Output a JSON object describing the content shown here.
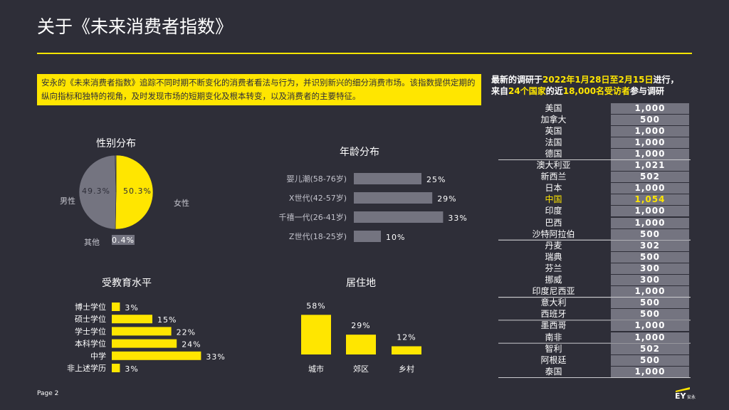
{
  "title": "关于《未来消费者指数》",
  "intro": "安永的《未来消费者指数》追踪不同时期不断变化的消费者看法与行为，并识别新兴的细分消费市场。该指数提供定期的纵向指标和独特的视角，及时发现市场的短期变化及根本转变，以及消费者的主要特征。",
  "survey": {
    "heading_parts": [
      "最新的调研于",
      "2022年1月28日至2月15日",
      "进行，",
      "来自",
      "24个国家",
      "的近",
      "18,000名受访者",
      "参与调研"
    ]
  },
  "countries": [
    {
      "name": "美国",
      "value": "1,000"
    },
    {
      "name": "加拿大",
      "value": "500"
    },
    {
      "name": "英国",
      "value": "1,000"
    },
    {
      "name": "法国",
      "value": "1,000"
    },
    {
      "name": "德国",
      "value": "1,000"
    },
    {
      "name": "澳大利亚",
      "value": "1,021"
    },
    {
      "name": "新西兰",
      "value": "502"
    },
    {
      "name": "日本",
      "value": "1,000"
    },
    {
      "name": "中国",
      "value": "1,054",
      "highlight": true
    },
    {
      "name": "印度",
      "value": "1,000"
    },
    {
      "name": "巴西",
      "value": "1,000"
    },
    {
      "name": "沙特阿拉伯",
      "value": "500"
    },
    {
      "name": "丹麦",
      "value": "302"
    },
    {
      "name": "瑞典",
      "value": "500"
    },
    {
      "name": "芬兰",
      "value": "300"
    },
    {
      "name": "挪威",
      "value": "300"
    },
    {
      "name": "印度尼西亚",
      "value": "1,000"
    },
    {
      "name": "意大利",
      "value": "500"
    },
    {
      "name": "西班牙",
      "value": "500"
    },
    {
      "name": "墨西哥",
      "value": "1,000"
    },
    {
      "name": "南非",
      "value": "1,000"
    },
    {
      "name": "智利",
      "value": "502"
    },
    {
      "name": "阿根廷",
      "value": "500"
    },
    {
      "name": "泰国",
      "value": "1,000"
    }
  ],
  "colors": {
    "yellow": "#ffe600",
    "grey": "#747480",
    "bg": "#2e2e38"
  },
  "page_label": "Page 2",
  "logo_text": "EY",
  "logo_sub": "安永",
  "chart_data": [
    {
      "type": "pie",
      "title": "性别分布",
      "slices": [
        {
          "name": "女性",
          "value": 50.3,
          "label": "50.3%",
          "color": "#ffe600"
        },
        {
          "name": "男性",
          "value": 49.3,
          "label": "49.3%",
          "color": "#747480"
        },
        {
          "name": "其他",
          "value": 0.4,
          "label": "0.4%",
          "color": "#747480"
        }
      ]
    },
    {
      "type": "bar",
      "orientation": "horizontal",
      "title": "年龄分布",
      "categories": [
        "婴儿潮(58-76岁)",
        "X世代(42-57岁)",
        "千禧一代(26-41岁)",
        "Z世代(18-25岁)"
      ],
      "values": [
        25,
        29,
        33,
        10
      ],
      "labels": [
        "25%",
        "29%",
        "33%",
        "10%"
      ],
      "color": "#747480"
    },
    {
      "type": "bar",
      "orientation": "horizontal",
      "title": "受教育水平",
      "categories": [
        "博士学位",
        "硕士学位",
        "学士学位",
        "本科学位",
        "中学",
        "非上述学历"
      ],
      "values": [
        3,
        15,
        22,
        24,
        33,
        3
      ],
      "labels": [
        "3%",
        "15%",
        "22%",
        "24%",
        "33%",
        "3%"
      ],
      "color": "#ffe600"
    },
    {
      "type": "bar",
      "orientation": "vertical",
      "title": "居住地",
      "categories": [
        "城市",
        "郊区",
        "乡村"
      ],
      "values": [
        58,
        29,
        12
      ],
      "labels": [
        "58%",
        "29%",
        "12%"
      ],
      "color": "#ffe600"
    }
  ]
}
